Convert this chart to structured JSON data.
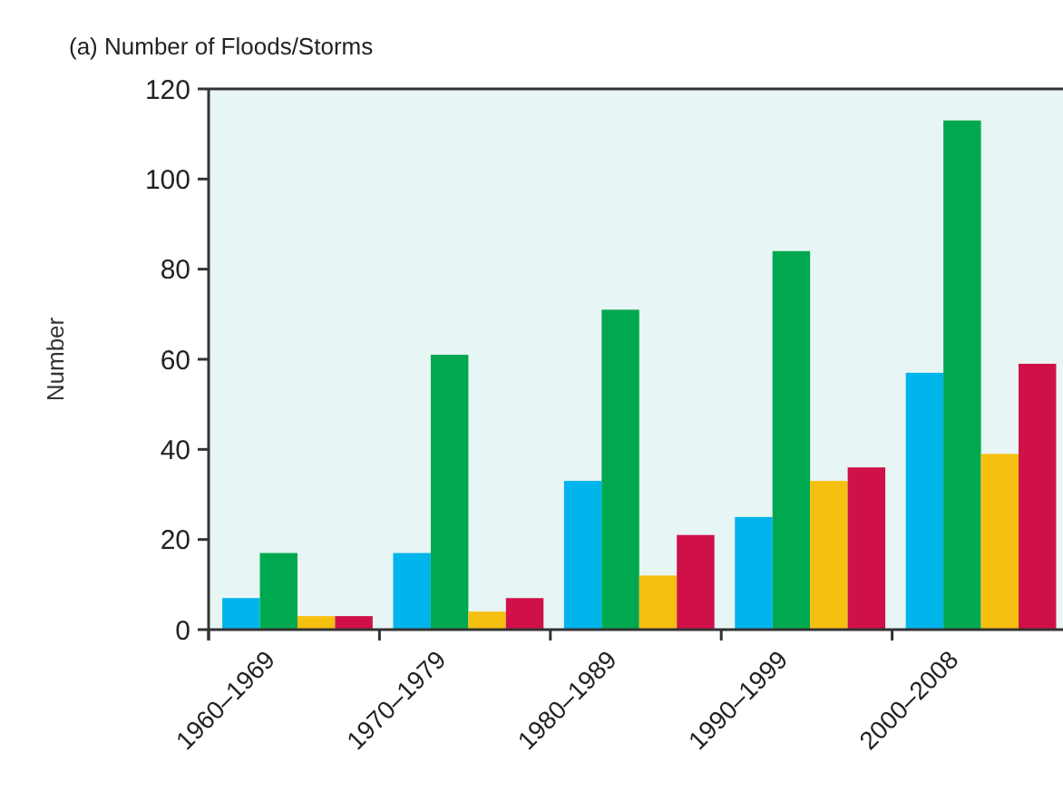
{
  "chart_data": {
    "type": "bar",
    "title": "(a) Number of Floods/Storms",
    "ylabel": "Number",
    "categories": [
      "1960–1969",
      "1970–1979",
      "1980–1989",
      "1990–1999",
      "2000–2008"
    ],
    "series": [
      {
        "color": "#00b4ec",
        "values": [
          7,
          17,
          33,
          25,
          57
        ]
      },
      {
        "color": "#00a84f",
        "values": [
          17,
          61,
          71,
          84,
          113
        ]
      },
      {
        "color": "#f5c010",
        "values": [
          3,
          4,
          12,
          33,
          39
        ]
      },
      {
        "color": "#d01048",
        "values": [
          3,
          7,
          21,
          36,
          59
        ]
      }
    ],
    "ylim": [
      0,
      120
    ],
    "yticks": [
      0,
      20,
      40,
      60,
      80,
      100,
      120
    ],
    "grid": false
  }
}
